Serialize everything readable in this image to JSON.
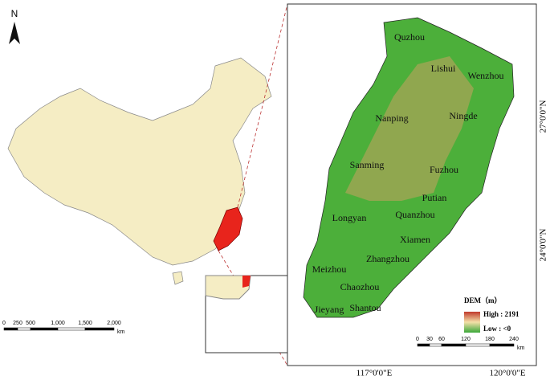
{
  "left_map": {
    "north": "N",
    "scale": {
      "labels": [
        "0",
        "250",
        "500",
        "1,000",
        "1,500",
        "2,000"
      ],
      "unit": "km"
    }
  },
  "right_map": {
    "cities": [
      "Quzhou",
      "Lishui",
      "Wenzhou",
      "Nanping",
      "Ningde",
      "Sanming",
      "Fuzhou",
      "Putian",
      "Longyan",
      "Quanzhou",
      "Xiamen",
      "Zhangzhou",
      "Meizhou",
      "Chaozhou",
      "Shantou",
      "Jieyang"
    ],
    "legend": {
      "title": "DEM（m）",
      "high": "High : 2191",
      "low": "Low : <0"
    },
    "scale": {
      "labels": [
        "0",
        "30",
        "60",
        "120",
        "180",
        "240"
      ],
      "unit": "km"
    },
    "lon_labels": [
      "117°0'0\"E",
      "120°0'0\"E"
    ],
    "lat_labels": [
      "27°0'0\"N",
      "24°0'0\"N"
    ]
  }
}
